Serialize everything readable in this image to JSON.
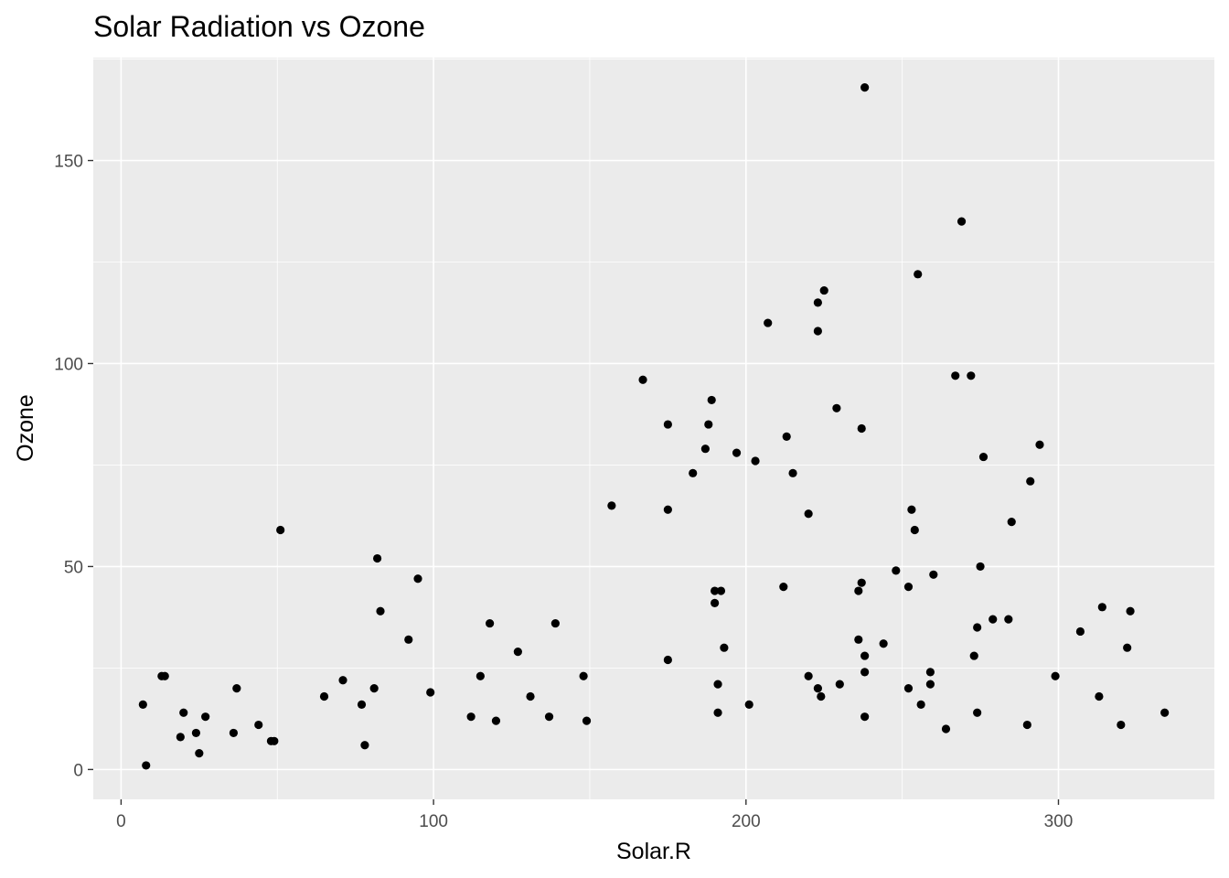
{
  "chart_data": {
    "type": "scatter",
    "title": "Solar Radiation vs Ozone",
    "xlabel": "Solar.R",
    "ylabel": "Ozone",
    "xlim": [
      -8.9,
      349.9
    ],
    "ylim": [
      -7.35,
      175.35
    ],
    "x_ticks": [
      0,
      100,
      200,
      300
    ],
    "y_ticks": [
      0,
      50,
      100,
      150
    ],
    "x_tick_labels": [
      "0",
      "100",
      "200",
      "300"
    ],
    "y_tick_labels": [
      "0",
      "50",
      "100",
      "150"
    ],
    "grid": true,
    "panel_background": "#ebebeb",
    "point_color": "#000000",
    "points": [
      [
        7,
        16
      ],
      [
        8,
        1
      ],
      [
        13,
        23
      ],
      [
        14,
        23
      ],
      [
        19,
        8
      ],
      [
        20,
        14
      ],
      [
        24,
        9
      ],
      [
        25,
        4
      ],
      [
        27,
        13
      ],
      [
        36,
        9
      ],
      [
        37,
        20
      ],
      [
        44,
        11
      ],
      [
        48,
        7
      ],
      [
        49,
        7
      ],
      [
        51,
        59
      ],
      [
        65,
        18
      ],
      [
        71,
        22
      ],
      [
        77,
        16
      ],
      [
        78,
        6
      ],
      [
        81,
        20
      ],
      [
        82,
        52
      ],
      [
        83,
        39
      ],
      [
        92,
        32
      ],
      [
        95,
        47
      ],
      [
        99,
        19
      ],
      [
        112,
        13
      ],
      [
        115,
        23
      ],
      [
        118,
        36
      ],
      [
        120,
        12
      ],
      [
        127,
        29
      ],
      [
        131,
        18
      ],
      [
        137,
        13
      ],
      [
        139,
        36
      ],
      [
        148,
        23
      ],
      [
        149,
        12
      ],
      [
        157,
        65
      ],
      [
        167,
        96
      ],
      [
        175,
        85
      ],
      [
        175,
        64
      ],
      [
        175,
        27
      ],
      [
        183,
        73
      ],
      [
        187,
        79
      ],
      [
        188,
        85
      ],
      [
        189,
        91
      ],
      [
        190,
        44
      ],
      [
        190,
        41
      ],
      [
        191,
        21
      ],
      [
        191,
        14
      ],
      [
        192,
        44
      ],
      [
        193,
        30
      ],
      [
        197,
        78
      ],
      [
        201,
        16
      ],
      [
        203,
        76
      ],
      [
        207,
        110
      ],
      [
        212,
        45
      ],
      [
        213,
        82
      ],
      [
        215,
        73
      ],
      [
        220,
        63
      ],
      [
        220,
        23
      ],
      [
        223,
        115
      ],
      [
        223,
        108
      ],
      [
        223,
        20
      ],
      [
        224,
        18
      ],
      [
        225,
        118
      ],
      [
        229,
        89
      ],
      [
        230,
        21
      ],
      [
        236,
        44
      ],
      [
        236,
        32
      ],
      [
        237,
        84
      ],
      [
        237,
        46
      ],
      [
        238,
        168
      ],
      [
        238,
        28
      ],
      [
        238,
        24
      ],
      [
        238,
        13
      ],
      [
        244,
        31
      ],
      [
        248,
        49
      ],
      [
        252,
        45
      ],
      [
        252,
        20
      ],
      [
        253,
        64
      ],
      [
        254,
        59
      ],
      [
        255,
        122
      ],
      [
        256,
        16
      ],
      [
        259,
        24
      ],
      [
        259,
        21
      ],
      [
        260,
        48
      ],
      [
        264,
        10
      ],
      [
        267,
        97
      ],
      [
        269,
        135
      ],
      [
        272,
        97
      ],
      [
        273,
        28
      ],
      [
        274,
        14
      ],
      [
        274,
        35
      ],
      [
        275,
        50
      ],
      [
        276,
        77
      ],
      [
        279,
        37
      ],
      [
        284,
        37
      ],
      [
        285,
        61
      ],
      [
        290,
        11
      ],
      [
        291,
        71
      ],
      [
        294,
        80
      ],
      [
        299,
        23
      ],
      [
        307,
        34
      ],
      [
        313,
        18
      ],
      [
        314,
        40
      ],
      [
        320,
        11
      ],
      [
        322,
        30
      ],
      [
        323,
        39
      ],
      [
        334,
        14
      ]
    ]
  }
}
